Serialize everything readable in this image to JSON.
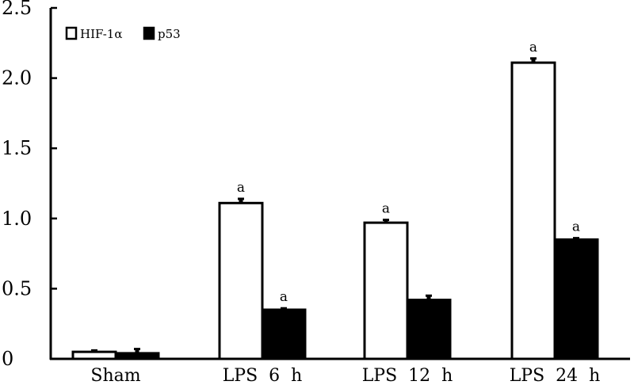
{
  "chart_data": {
    "type": "bar",
    "categories": [
      "Sham",
      "LPS  6  h",
      "LPS  12  h",
      "LPS  24  h"
    ],
    "series": [
      {
        "name": "HIF-1α",
        "values": [
          0.05,
          1.11,
          0.97,
          2.11
        ],
        "errors": [
          0.01,
          0.03,
          0.02,
          0.03
        ],
        "significance": [
          "",
          "a",
          "a",
          "a"
        ],
        "color": "#ffffff"
      },
      {
        "name": "p53",
        "values": [
          0.04,
          0.35,
          0.42,
          0.85
        ],
        "errors": [
          0.03,
          0.01,
          0.03,
          0.01
        ],
        "significance": [
          "",
          "a",
          "",
          "a"
        ],
        "color": "#000000"
      }
    ],
    "yticks": [
      "0",
      "0.5",
      "1.0",
      "1.5",
      "2.0",
      "2.5"
    ],
    "ylim": [
      0,
      2.5
    ],
    "title": "",
    "xlabel": "",
    "ylabel": "",
    "legend_position": "top-left",
    "grid": false
  }
}
